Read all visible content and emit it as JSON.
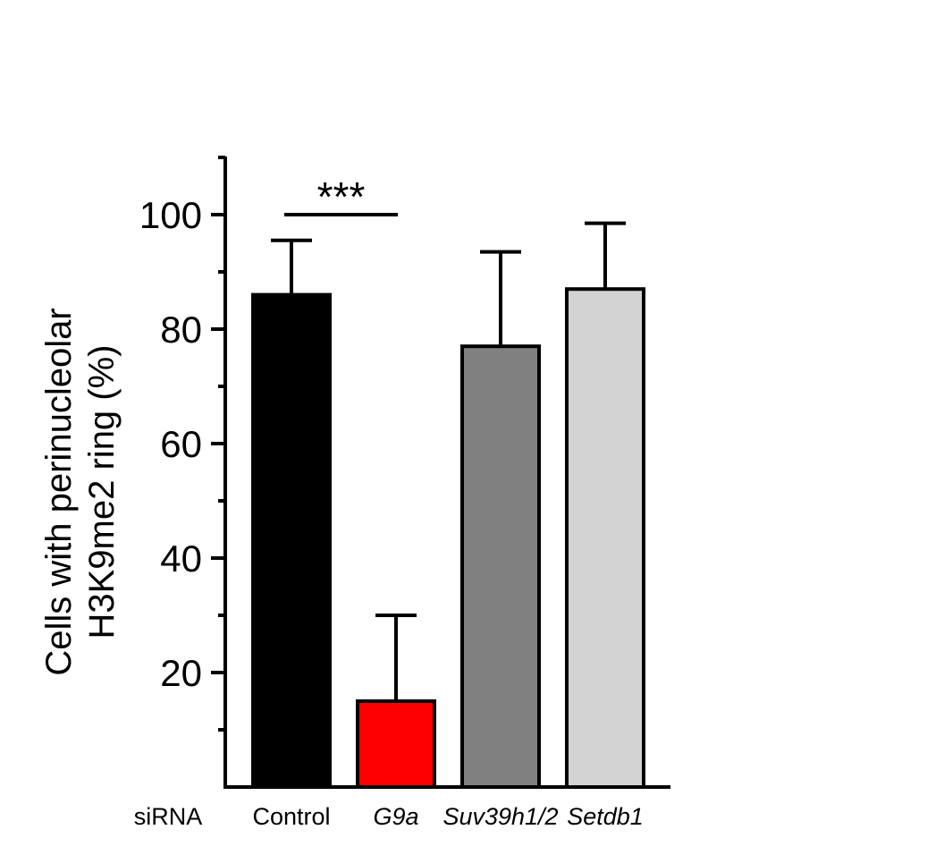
{
  "chart_data": {
    "type": "bar",
    "title": "",
    "xlabel": "",
    "ylabel_lines": [
      "Cells with perinucleolar",
      "H3K9me2 ring (%)"
    ],
    "group_label": "siRNA",
    "categories": [
      "Control",
      "G9a",
      "Suv39h1/2",
      "Setdb1"
    ],
    "italic": [
      false,
      true,
      true,
      true
    ],
    "values": [
      86,
      15,
      77,
      87
    ],
    "errors": [
      9.5,
      15,
      16.5,
      11.5
    ],
    "colors": [
      "#000000",
      "#ff0000",
      "#808080",
      "#d3d3d3"
    ],
    "ylim": [
      0,
      110
    ],
    "yticks": [
      20,
      40,
      60,
      80,
      100
    ],
    "yticks_minor": [
      10,
      30,
      50,
      70,
      90,
      110
    ],
    "significance": {
      "label": "***",
      "from": 0,
      "to": 1,
      "y": 100
    }
  }
}
